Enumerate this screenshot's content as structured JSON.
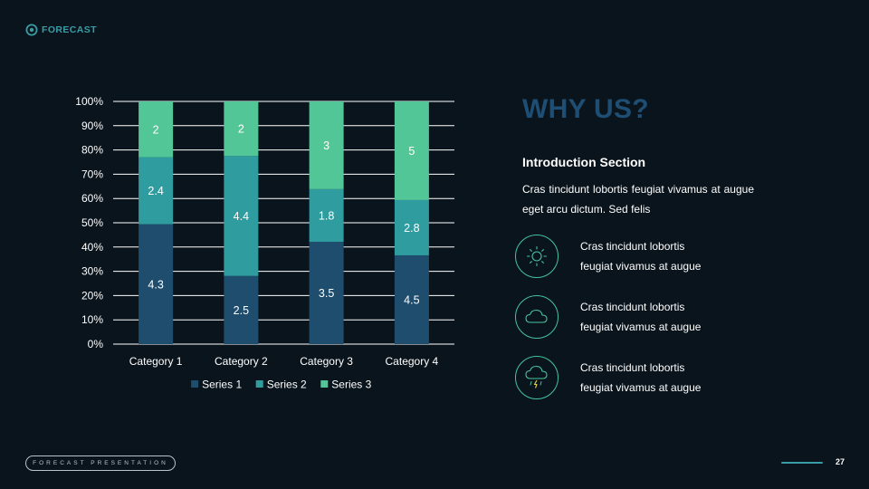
{
  "brand": {
    "logo_text": "FORECAST",
    "logo_icon": "forecast-logo-icon"
  },
  "colors": {
    "background": "#0a141c",
    "series1": "#1f4d6d",
    "series2": "#2f9da0",
    "series3": "#53c697",
    "title": "#1e4e74",
    "accent": "#3a9ca6"
  },
  "chart_data": {
    "type": "bar",
    "stacked": "percent",
    "categories": [
      "Category 1",
      "Category 2",
      "Category 3",
      "Category 4"
    ],
    "series": [
      {
        "name": "Series 1",
        "values": [
          4.3,
          2.5,
          3.5,
          4.5
        ]
      },
      {
        "name": "Series 2",
        "values": [
          2.4,
          4.4,
          1.8,
          2.8
        ]
      },
      {
        "name": "Series 3",
        "values": [
          2,
          2,
          3,
          5
        ]
      }
    ],
    "ylim": [
      0,
      100
    ],
    "yticks": [
      "0%",
      "10%",
      "20%",
      "30%",
      "40%",
      "50%",
      "60%",
      "70%",
      "80%",
      "90%",
      "100%"
    ],
    "grid": true,
    "legend": "bottom",
    "data_labels": true
  },
  "right_panel": {
    "title": "WHY US?",
    "intro_heading": "Introduction Section",
    "intro_body": "Cras tincidunt lobortis feugiat vivamus at augue eget arcu dictum. Sed felis",
    "features": [
      {
        "icon": "sun-icon",
        "line1": "Cras tincidunt lobortis",
        "line2": "feugiat vivamus at augue"
      },
      {
        "icon": "cloud-icon",
        "line1": "Cras tincidunt lobortis",
        "line2": "feugiat vivamus at augue"
      },
      {
        "icon": "storm-cloud-icon",
        "line1": "Cras tincidunt lobortis",
        "line2": "feugiat vivamus at augue"
      }
    ]
  },
  "footer": {
    "label": "FORECAST PRESENTATION",
    "page_number": "27"
  }
}
